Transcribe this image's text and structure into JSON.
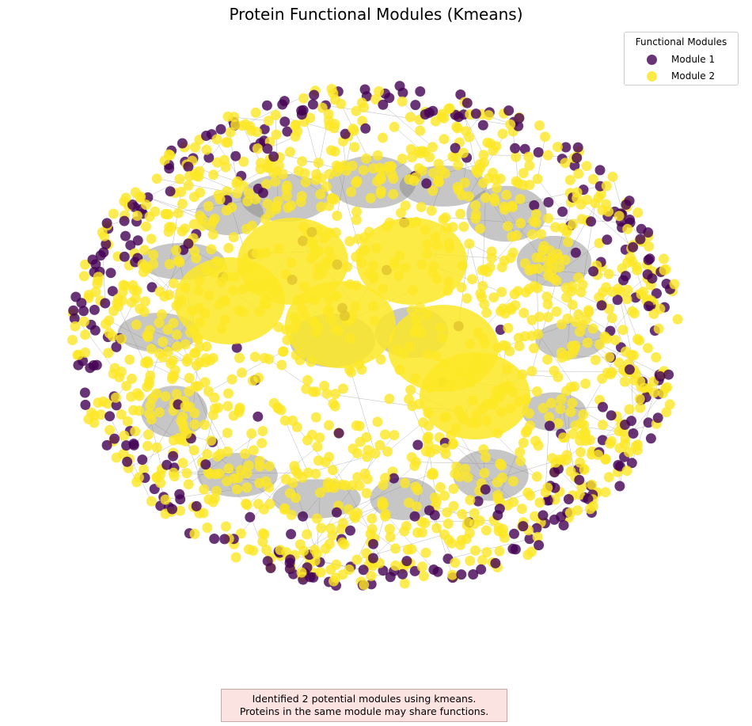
{
  "title": "Protein Functional Modules (Kmeans)",
  "legend": {
    "title": "Functional Modules",
    "items": [
      {
        "label": "Module 1",
        "color": "#440154"
      },
      {
        "label": "Module 2",
        "color": "#fde725"
      }
    ]
  },
  "network": {
    "edge_color": "#808080",
    "node_colors": {
      "module_1": "#440154",
      "module_2": "#fde725"
    }
  },
  "caption": {
    "line1": "Identified 2 potential modules using kmeans.",
    "line2": "Proteins in the same module may share functions."
  }
}
